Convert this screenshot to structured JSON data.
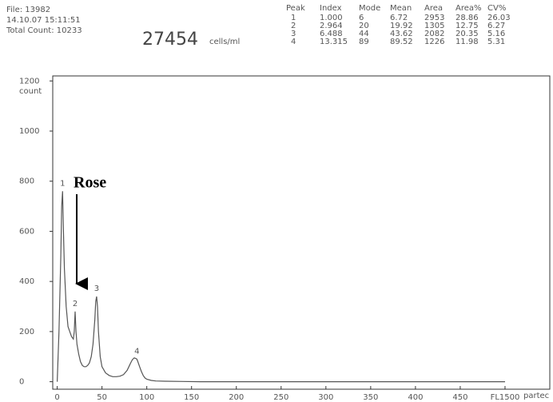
{
  "chart_data": {
    "type": "line",
    "file": "File: 13982",
    "timestamp": "14.10.07 15:11:51",
    "total_count": "Total Count: 10233",
    "concentration": "27454",
    "unit": "cells/ml",
    "y_label": "count",
    "footer": "partec",
    "annotation": "Rose",
    "peak_table": {
      "columns": [
        "Peak",
        "Index",
        "Mode",
        "Mean",
        "Area",
        "Area%",
        "CV%"
      ],
      "rows": [
        [
          "1",
          "1.000",
          "6",
          "6.72",
          "2953",
          "28.86",
          "26.03"
        ],
        [
          "2",
          "2.964",
          "20",
          "19.92",
          "1305",
          "12.75",
          "6.27"
        ],
        [
          "3",
          "6.488",
          "44",
          "43.62",
          "2082",
          "20.35",
          "5.16"
        ],
        [
          "4",
          "13.315",
          "89",
          "89.52",
          "1226",
          "11.98",
          "5.31"
        ]
      ]
    },
    "x": [
      0,
      2,
      4,
      5,
      6,
      7,
      8,
      10,
      12,
      14,
      16,
      18,
      19,
      20,
      21,
      22,
      24,
      26,
      28,
      30,
      32,
      34,
      36,
      38,
      40,
      42,
      43,
      44,
      45,
      46,
      48,
      50,
      54,
      58,
      62,
      66,
      70,
      74,
      78,
      80,
      82,
      84,
      86,
      88,
      89,
      90,
      92,
      94,
      96,
      98,
      100,
      105,
      110,
      120,
      140,
      160,
      200,
      300,
      400,
      500
    ],
    "values": [
      0,
      200,
      500,
      700,
      760,
      600,
      450,
      300,
      220,
      200,
      180,
      170,
      200,
      280,
      200,
      150,
      110,
      80,
      65,
      60,
      60,
      65,
      75,
      100,
      150,
      250,
      320,
      340,
      300,
      200,
      100,
      60,
      35,
      25,
      20,
      20,
      22,
      28,
      45,
      60,
      75,
      88,
      95,
      92,
      90,
      80,
      60,
      40,
      25,
      15,
      10,
      5,
      3,
      2,
      1,
      0,
      0,
      0,
      0,
      0
    ],
    "color": "#555555",
    "xlim": [
      -5,
      550
    ],
    "ylim": [
      -30,
      1220
    ],
    "xticks": [
      0,
      50,
      100,
      150,
      200,
      250,
      300,
      350,
      400,
      450,
      {
        "value": 500,
        "label": "FL1500"
      }
    ],
    "yticks": [
      0,
      200,
      400,
      600,
      800,
      1000,
      1200
    ]
  }
}
